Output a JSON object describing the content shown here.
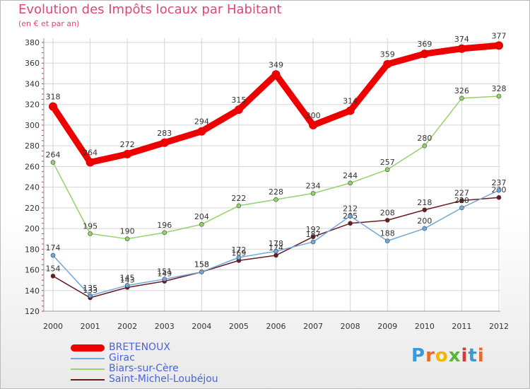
{
  "title": "Evolution des Impôts locaux par Habitant",
  "subtitle": "(en € et par an)",
  "brand": {
    "letters": [
      "P",
      "r",
      "o",
      "x",
      "i",
      "t",
      "i"
    ]
  },
  "chart_data": {
    "type": "line",
    "x": [
      "2000",
      "2001",
      "2002",
      "2003",
      "2004",
      "2005",
      "2006",
      "2007",
      "2008",
      "2009",
      "2010",
      "2011",
      "2012"
    ],
    "ylim": [
      120,
      380
    ],
    "yticks": [
      120,
      140,
      160,
      180,
      200,
      220,
      240,
      260,
      280,
      300,
      320,
      340,
      360,
      380
    ],
    "grid": true,
    "legend_position": "bottom-left",
    "series": [
      {
        "name": "Saint-Michel-Loubéjou",
        "color": "#6b1a1f",
        "values": [
          154,
          133,
          143,
          149,
          158,
          169,
          174,
          192,
          205,
          208,
          218,
          227,
          230
        ]
      },
      {
        "name": "Girac",
        "color": "#6fa8dc",
        "values": [
          174,
          135,
          145,
          151,
          158,
          172,
          178,
          187,
          212,
          188,
          200,
          220,
          237
        ]
      },
      {
        "name": "Biars-sur-Cère",
        "color": "#93d36a",
        "values": [
          264,
          195,
          190,
          196,
          204,
          222,
          228,
          234,
          244,
          257,
          280,
          326,
          328
        ]
      },
      {
        "name": "BRETENOUX",
        "color": "#ee0000",
        "values": [
          318,
          264,
          272,
          283,
          294,
          315,
          349,
          300,
          314,
          359,
          369,
          374,
          377
        ]
      }
    ]
  },
  "legend": [
    {
      "name": "BRETENOUX",
      "color": "#ee0000",
      "width": 10
    },
    {
      "name": "Girac",
      "color": "#6fa8dc",
      "width": 2
    },
    {
      "name": "Biars-sur-Cère",
      "color": "#93d36a",
      "width": 2
    },
    {
      "name": "Saint-Michel-Loubéjou",
      "color": "#6b1a1f",
      "width": 2
    }
  ]
}
